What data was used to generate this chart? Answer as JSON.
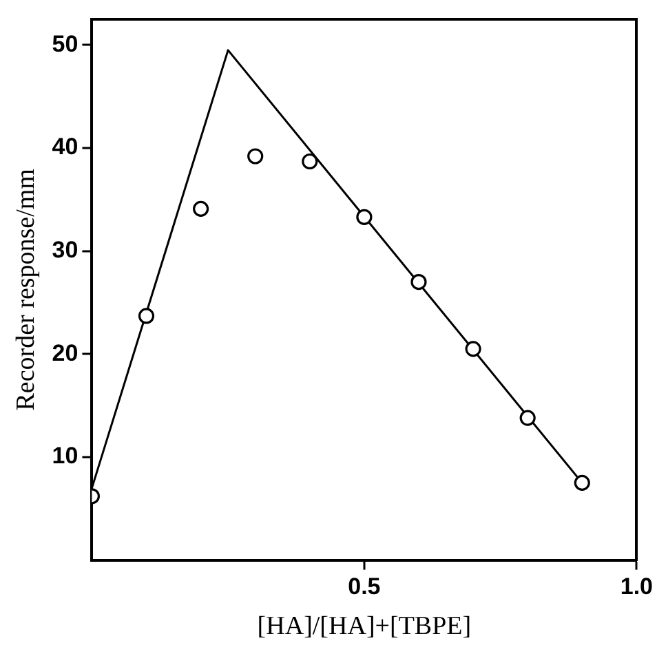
{
  "chart_data": {
    "type": "scatter",
    "xlabel": "[HA]/[HA]+[TBPE]",
    "ylabel": "Recorder response/mm",
    "xlim": [
      0,
      1
    ],
    "xticks": [
      0.5,
      {
        "value": 1,
        "label": "1.0"
      }
    ],
    "ylim": [
      0,
      52.5
    ],
    "yticks": [
      10,
      20,
      30,
      40,
      50
    ],
    "grid": false,
    "legend": false,
    "marker": "circle",
    "series": [
      {
        "color": "#000000",
        "x": [
          0,
          0.1,
          0.2,
          0.3,
          0.4,
          0.5,
          0.6,
          0.7,
          0.8,
          0.9
        ],
        "values": [
          6.2,
          23.7,
          34.1,
          39.2,
          38.7,
          33.3,
          27.0,
          20.5,
          13.8,
          7.5
        ]
      },
      {
        "type": "line",
        "color": "#000000",
        "x": [
          0,
          0.25,
          0.9
        ],
        "values": [
          7,
          49.5,
          7.5
        ],
        "marker": "none",
        "line_style": "solid"
      }
    ]
  }
}
